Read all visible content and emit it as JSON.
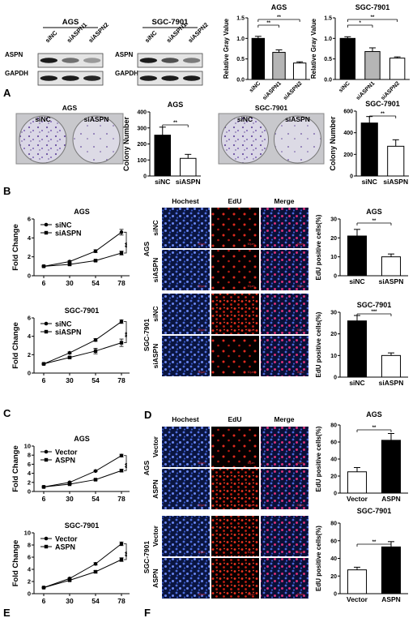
{
  "panel_letters": [
    "A",
    "B",
    "C",
    "D",
    "E",
    "F"
  ],
  "western": {
    "cell_lines": [
      "AGS",
      "SGC-7901"
    ],
    "lanes": [
      "siNC",
      "siASPN1",
      "siASPN2"
    ],
    "proteins": [
      "ASPN",
      "GAPDH"
    ]
  },
  "stains": {
    "headers": [
      "Hochest",
      "EdU",
      "Merge"
    ],
    "scale": "50μm"
  },
  "sig": {
    "two": "**",
    "three": "***"
  },
  "chart_data": [
    {
      "id": "a_gray_ags",
      "type": "bar",
      "title": "AGS",
      "ylabel": "Relative Gray Value",
      "categories": [
        "siNC",
        "siASPN1",
        "siASPN2"
      ],
      "values": [
        1.0,
        0.66,
        0.4
      ],
      "errors": [
        0.05,
        0.06,
        0.03
      ],
      "fills": [
        "#000000",
        "#b5b5b5",
        "#ffffff"
      ],
      "ylim": [
        0,
        1.5
      ],
      "yticks": [
        "0.0",
        "0.5",
        "1.0",
        "1.5"
      ],
      "sig": [
        {
          "from": 0,
          "to": 1,
          "label": "**"
        },
        {
          "from": 0,
          "to": 2,
          "label": "**"
        }
      ]
    },
    {
      "id": "a_gray_sgc",
      "type": "bar",
      "title": "SGC-7901",
      "ylabel": "Relative Gray Value",
      "categories": [
        "siNC",
        "siASPN1",
        "siASPN2"
      ],
      "values": [
        1.0,
        0.68,
        0.52
      ],
      "errors": [
        0.04,
        0.09,
        0.03
      ],
      "fills": [
        "#000000",
        "#b5b5b5",
        "#ffffff"
      ],
      "ylim": [
        0,
        1.5
      ],
      "yticks": [
        "0.0",
        "0.5",
        "1.0",
        "1.5"
      ],
      "sig": [
        {
          "from": 0,
          "to": 1,
          "label": "*"
        },
        {
          "from": 0,
          "to": 2,
          "label": "**"
        }
      ]
    },
    {
      "id": "b_col_ags",
      "type": "bar",
      "title": "AGS",
      "ylabel": "Colony Number",
      "categories": [
        "siNC",
        "siASPN"
      ],
      "values": [
        255,
        110
      ],
      "errors": [
        50,
        25
      ],
      "fills": [
        "#000000",
        "#ffffff"
      ],
      "ylim": [
        0,
        400
      ],
      "yticks": [
        "0",
        "100",
        "200",
        "300",
        "400"
      ],
      "sig": [
        {
          "from": 0,
          "to": 1,
          "label": "**"
        }
      ]
    },
    {
      "id": "b_col_sgc",
      "type": "bar",
      "title": "SGC-7901",
      "ylabel": "Colony Number",
      "categories": [
        "siNC",
        "siASPN"
      ],
      "values": [
        490,
        275
      ],
      "errors": [
        60,
        60
      ],
      "fills": [
        "#000000",
        "#ffffff"
      ],
      "ylim": [
        0,
        600
      ],
      "yticks": [
        "0",
        "200",
        "400",
        "600"
      ],
      "sig": [
        {
          "from": 0,
          "to": 1,
          "label": "**"
        }
      ]
    },
    {
      "id": "c_line_ags",
      "type": "line",
      "title": "AGS",
      "ylabel": "Fold Change",
      "x": [
        "6",
        "30",
        "54",
        "78"
      ],
      "ylim": [
        0,
        6
      ],
      "yticks": [
        "0",
        "2",
        "4",
        "6"
      ],
      "legend": "top-left",
      "sig": "**",
      "series": [
        {
          "name": "siNC",
          "marker": "circle",
          "values": [
            1.0,
            1.5,
            2.6,
            4.6
          ],
          "errors": [
            0.05,
            0.1,
            0.15,
            0.3
          ]
        },
        {
          "name": "siASPN",
          "marker": "square",
          "values": [
            1.0,
            1.2,
            1.6,
            2.4
          ],
          "errors": [
            0.05,
            0.1,
            0.1,
            0.2
          ]
        }
      ]
    },
    {
      "id": "c_line_sgc",
      "type": "line",
      "title": "SGC-7901",
      "ylabel": "Fold Change",
      "x": [
        "6",
        "30",
        "54",
        "78"
      ],
      "ylim": [
        0,
        6
      ],
      "yticks": [
        "0",
        "2",
        "4",
        "6"
      ],
      "legend": "top-left",
      "sig": "**",
      "series": [
        {
          "name": "siNC",
          "marker": "circle",
          "values": [
            1.0,
            2.2,
            3.6,
            5.6
          ],
          "errors": [
            0.05,
            0.1,
            0.15,
            0.2
          ]
        },
        {
          "name": "siASPN",
          "marker": "square",
          "values": [
            1.0,
            1.7,
            2.4,
            3.3
          ],
          "errors": [
            0.05,
            0.1,
            0.3,
            0.4
          ]
        }
      ]
    },
    {
      "id": "d_edu_ags",
      "type": "bar",
      "title": "AGS",
      "ylabel": "EdU positive cells(%)",
      "categories": [
        "siNC",
        "siASPN"
      ],
      "values": [
        21,
        10
      ],
      "errors": [
        3.5,
        1.5
      ],
      "fills": [
        "#000000",
        "#ffffff"
      ],
      "ylim": [
        0,
        30
      ],
      "yticks": [
        "0",
        "10",
        "20",
        "30"
      ],
      "sig": [
        {
          "from": 0,
          "to": 1,
          "label": "**"
        }
      ]
    },
    {
      "id": "d_edu_sgc",
      "type": "bar",
      "title": "SGC-7901",
      "ylabel": "EdU positive cells(%)",
      "categories": [
        "siNC",
        "siASPN"
      ],
      "values": [
        26,
        10
      ],
      "errors": [
        2.5,
        1.2
      ],
      "fills": [
        "#000000",
        "#ffffff"
      ],
      "ylim": [
        0,
        30
      ],
      "yticks": [
        "0",
        "10",
        "20",
        "30"
      ],
      "sig": [
        {
          "from": 0,
          "to": 1,
          "label": "***"
        }
      ]
    },
    {
      "id": "e_line_ags",
      "type": "line",
      "title": "AGS",
      "ylabel": "Fold Change",
      "x": [
        "6",
        "30",
        "54",
        "78"
      ],
      "ylim": [
        0,
        10
      ],
      "yticks": [
        "0",
        "2",
        "4",
        "6",
        "8",
        "10"
      ],
      "legend": "top-left",
      "sig": "**",
      "series": [
        {
          "name": "Vector",
          "marker": "circle",
          "values": [
            1.0,
            2.0,
            4.5,
            7.9
          ],
          "errors": [
            0.05,
            0.1,
            0.15,
            0.3
          ]
        },
        {
          "name": "ASPN",
          "marker": "square",
          "values": [
            1.0,
            1.6,
            2.6,
            4.6
          ],
          "errors": [
            0.05,
            0.1,
            0.15,
            0.3
          ]
        }
      ]
    },
    {
      "id": "e_line_sgc",
      "type": "line",
      "title": "SGC-7901",
      "ylabel": "Fold Change",
      "x": [
        "6",
        "30",
        "54",
        "78"
      ],
      "ylim": [
        0,
        10
      ],
      "yticks": [
        "0",
        "2",
        "4",
        "6",
        "8",
        "10"
      ],
      "legend": "top-left",
      "sig": "**",
      "series": [
        {
          "name": "Vector",
          "marker": "circle",
          "values": [
            1.0,
            2.5,
            4.9,
            8.2
          ],
          "errors": [
            0.05,
            0.1,
            0.2,
            0.3
          ]
        },
        {
          "name": "ASPN",
          "marker": "square",
          "values": [
            1.0,
            2.2,
            3.6,
            5.6
          ],
          "errors": [
            0.05,
            0.1,
            0.2,
            0.3
          ]
        }
      ]
    },
    {
      "id": "f_edu_ags",
      "type": "bar",
      "title": "AGS",
      "ylabel": "EdU positive cells(%)",
      "categories": [
        "Vector",
        "ASPN"
      ],
      "values": [
        25,
        62
      ],
      "errors": [
        5,
        8
      ],
      "fills": [
        "#ffffff",
        "#000000"
      ],
      "ylim": [
        0,
        80
      ],
      "yticks": [
        "0",
        "20",
        "40",
        "60",
        "80"
      ],
      "sig": [
        {
          "from": 0,
          "to": 1,
          "label": "**"
        }
      ]
    },
    {
      "id": "f_edu_sgc",
      "type": "bar",
      "title": "SGC-7901",
      "ylabel": "EdU positive cells(%)",
      "categories": [
        "Vector",
        "ASPN"
      ],
      "values": [
        27,
        53
      ],
      "errors": [
        3,
        6
      ],
      "fills": [
        "#ffffff",
        "#000000"
      ],
      "ylim": [
        0,
        80
      ],
      "yticks": [
        "0",
        "20",
        "40",
        "60",
        "80"
      ],
      "sig": [
        {
          "from": 0,
          "to": 1,
          "label": "**"
        }
      ]
    }
  ]
}
